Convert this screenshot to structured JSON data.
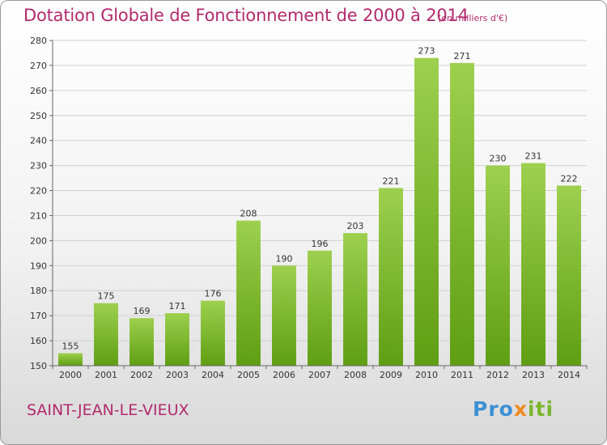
{
  "chart_data": {
    "type": "bar",
    "title": "Dotation Globale de Fonctionnement de 2000 à 2014",
    "unit_note": "(en milliers d'€)",
    "categories": [
      "2000",
      "2001",
      "2002",
      "2003",
      "2004",
      "2005",
      "2006",
      "2007",
      "2008",
      "2009",
      "2010",
      "2011",
      "2012",
      "2013",
      "2014"
    ],
    "values": [
      155,
      175,
      169,
      171,
      176,
      208,
      190,
      196,
      203,
      221,
      273,
      271,
      230,
      231,
      222
    ],
    "ylim": [
      150,
      280
    ],
    "yticks": [
      150,
      160,
      170,
      180,
      190,
      200,
      210,
      220,
      230,
      240,
      250,
      260,
      270,
      280
    ],
    "grid": true,
    "bar_color_top": "#9dd04e",
    "bar_color_bottom": "#5f9e12"
  },
  "commune": "SAINT-JEAN-LE-VIEUX",
  "logo": {
    "part1": "Pro",
    "part2": "x",
    "part3": "iti"
  }
}
